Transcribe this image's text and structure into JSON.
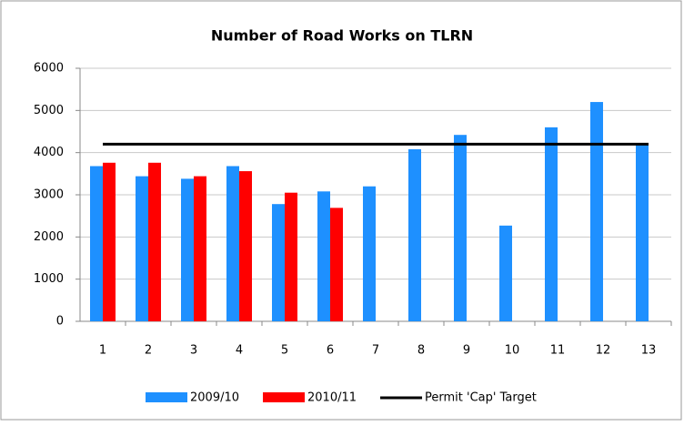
{
  "chart_data": {
    "type": "bar",
    "title": "Number of Road Works on TLRN",
    "categories": [
      "1",
      "2",
      "3",
      "4",
      "5",
      "6",
      "7",
      "8",
      "9",
      "10",
      "11",
      "12",
      "13"
    ],
    "series": [
      {
        "name": "2009/10",
        "color": "#1e90ff",
        "values": [
          3680,
          3440,
          3380,
          3680,
          2780,
          3080,
          3200,
          4080,
          4420,
          2270,
          4600,
          5200,
          4200
        ]
      },
      {
        "name": "2010/11",
        "color": "#ff0000",
        "values": [
          3760,
          3760,
          3440,
          3560,
          3050,
          2690,
          null,
          null,
          null,
          null,
          null,
          null,
          null
        ]
      },
      {
        "name": "Permit 'Cap' Target",
        "color": "#000000",
        "type": "line",
        "values": [
          4200,
          4200,
          4200,
          4200,
          4200,
          4200,
          4200,
          4200,
          4200,
          4200,
          4200,
          4200,
          4200
        ]
      }
    ],
    "ylim": [
      0,
      6000
    ],
    "yticks": [
      0,
      1000,
      2000,
      3000,
      4000,
      5000,
      6000
    ],
    "grid": true
  }
}
